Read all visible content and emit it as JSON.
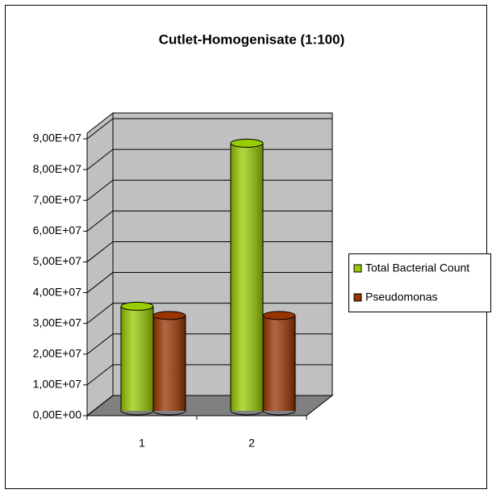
{
  "chart_data": {
    "type": "bar3d",
    "title": "Cutlet-Homogenisate (1:100)",
    "categories": [
      "1",
      "2"
    ],
    "series": [
      {
        "name": "Total Bacterial Count",
        "color": "#99cc00",
        "values": [
          34000000,
          87000000
        ]
      },
      {
        "name": "Pseudomonas",
        "color": "#993300",
        "values": [
          31000000,
          31000000
        ]
      }
    ],
    "ylim": [
      0,
      90000000
    ],
    "yticks": [
      {
        "value": 0,
        "label": "0,00E+00"
      },
      {
        "value": 10000000,
        "label": "1,00E+07"
      },
      {
        "value": 20000000,
        "label": "2,00E+07"
      },
      {
        "value": 30000000,
        "label": "3,00E+07"
      },
      {
        "value": 40000000,
        "label": "4,00E+07"
      },
      {
        "value": 50000000,
        "label": "5,00E+07"
      },
      {
        "value": 60000000,
        "label": "6,00E+07"
      },
      {
        "value": 70000000,
        "label": "7,00E+07"
      },
      {
        "value": 80000000,
        "label": "8,00E+07"
      },
      {
        "value": 90000000,
        "label": "9,00E+07"
      }
    ],
    "grid": true,
    "legend": "right"
  }
}
